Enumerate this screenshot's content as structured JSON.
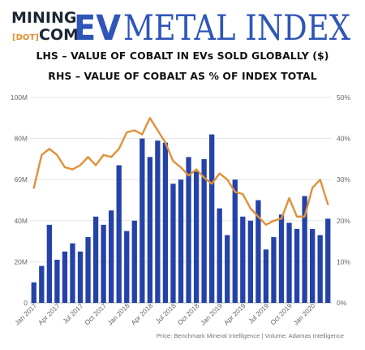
{
  "logo": {
    "word_mining": "MINING",
    "word_dot": "[DOT]",
    "word_com": "COM",
    "word_ev": "EV",
    "word_metal_index": "METAL INDEX",
    "colors": {
      "dark": "#1c2733",
      "orange": "#e0902f",
      "blue": "#2f55b7"
    }
  },
  "subtitle_lhs": "LHS – VALUE OF COBALT IN EVs SOLD GLOBALLY ($)",
  "subtitle_rhs": "RHS – VALUE OF COBALT AS % OF INDEX TOTAL",
  "source": "Price: Benchmark Mineral Intelligence | Volume: Adamas Intelligence",
  "chart_data": {
    "type": "bar",
    "categories": [
      "Jan 2017",
      "Feb 2017",
      "Mar 2017",
      "Apr 2017",
      "May 2017",
      "Jun 2017",
      "Jul 2017",
      "Aug 2017",
      "Sep 2017",
      "Oct 2017",
      "Nov 2017",
      "Dec 2017",
      "Jan 2018",
      "Feb 2018",
      "Mar 2018",
      "Apr 2018",
      "May 2018",
      "Jun 2018",
      "Jul 2018",
      "Aug 2018",
      "Sep 2018",
      "Oct 2018",
      "Nov 2018",
      "Dec 2018",
      "Jan 2019",
      "Feb 2019",
      "Mar 2019",
      "Apr 2019",
      "May 2019",
      "Jun 2019",
      "Jul 2019",
      "Aug 2019",
      "Sep 2019",
      "Oct 2019",
      "Nov 2019",
      "Dec 2019",
      "Jan 2020",
      "Feb 2020",
      "Mar 2020"
    ],
    "x_tick_labels": [
      "Jan 2017",
      "Apr 2017",
      "Jul 2017",
      "Oct 2017",
      "Jan 2018",
      "Apr 2018",
      "Jul 2018",
      "Oct 2018",
      "Jan 2019",
      "Apr 2019",
      "Jul 2019",
      "Oct 2019",
      "Jan 2020"
    ],
    "series": [
      {
        "axis": "left",
        "type": "bar",
        "color": "#2442a8",
        "values": [
          10,
          18,
          38,
          21,
          25,
          29,
          25,
          32,
          42,
          38,
          45,
          67,
          35,
          40,
          80,
          71,
          79,
          78,
          58,
          60,
          71,
          64,
          70,
          82,
          46,
          33,
          60,
          42,
          40,
          50,
          26,
          32,
          43,
          39,
          36,
          52,
          36,
          33,
          41
        ],
        "unit": "M"
      },
      {
        "axis": "right",
        "type": "line",
        "color": "#e0913a",
        "values": [
          28,
          36,
          37.5,
          36,
          33,
          32.5,
          33.5,
          35.5,
          33.5,
          36,
          35.5,
          37.5,
          41.5,
          42,
          41,
          45,
          42,
          39,
          34.5,
          33,
          31,
          32.5,
          30.5,
          29,
          31.5,
          30,
          27,
          26.5,
          23,
          21,
          19,
          20,
          20.5,
          25.5,
          21,
          21,
          28,
          30,
          24
        ]
      }
    ],
    "y_left": {
      "range": [
        0,
        100
      ],
      "ticks": [
        "0",
        "20M",
        "40M",
        "60M",
        "80M",
        "100M"
      ]
    },
    "y_right": {
      "range": [
        0,
        50
      ],
      "ticks": [
        "0%",
        "10%",
        "20%",
        "30%",
        "40%",
        "50%"
      ]
    },
    "grid": "horizontal"
  }
}
